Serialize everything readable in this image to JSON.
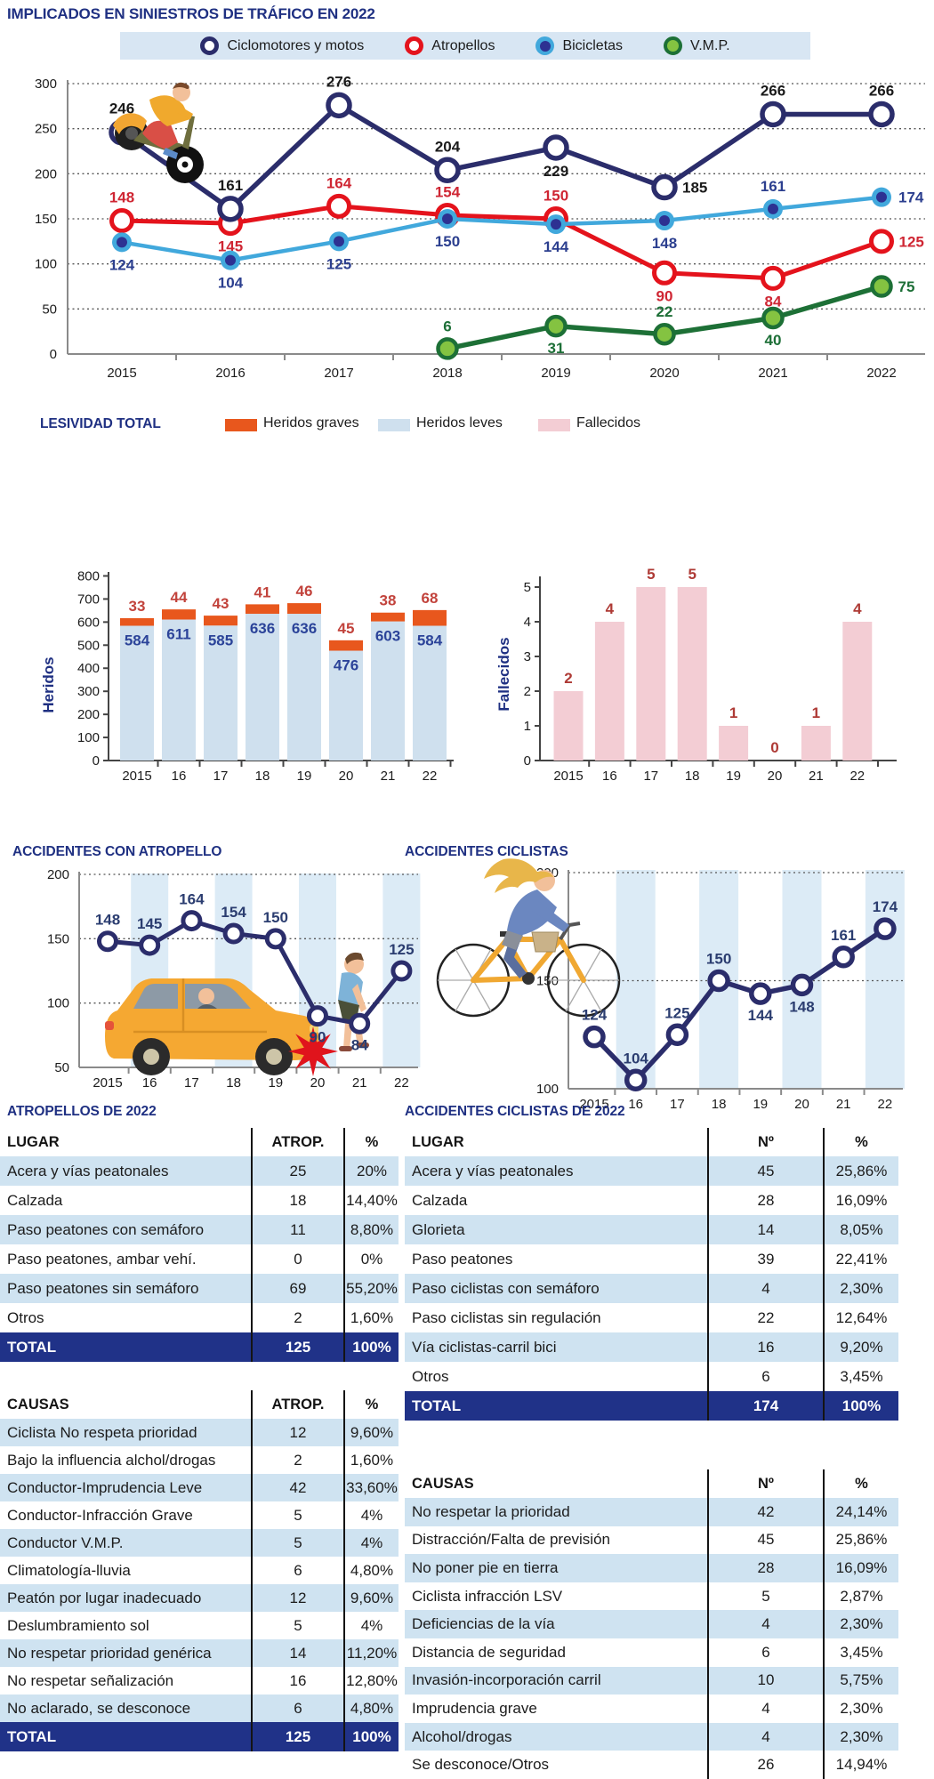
{
  "page_title": "IMPLICADOS EN SINIESTROS DE TRÁFICO EN 2022",
  "colors": {
    "accent_navy": "#1f3082",
    "line_navy": "#2b2d6b",
    "line_red": "#e4131c",
    "line_lightblue": "#41a8dc",
    "line_green": "#1d7036",
    "green_fill": "#84c341",
    "orange": "#e8571d",
    "light_blue_fill": "#cfe0ee",
    "pink": "#f3cdd4",
    "row_stripe": "#cfe3f1",
    "table_total_bg": "#203288",
    "plot_band": "#dcebf6"
  },
  "top_legend": [
    {
      "label": "Ciclomotores y motos"
    },
    {
      "label": "Atropellos"
    },
    {
      "label": "Bicicletas"
    },
    {
      "label": "V.M.P."
    }
  ],
  "lesividad_title": "LESIVIDAD TOTAL",
  "lesividad_legend": [
    {
      "label": "Heridos graves",
      "color": "#e8571d"
    },
    {
      "label": "Heridos leves",
      "color": "#cfe0ee"
    },
    {
      "label": "Fallecidos",
      "color": "#f3cdd4"
    }
  ],
  "chart_data": [
    {
      "id": "implicados",
      "type": "line",
      "title": "IMPLICADOS EN SINIESTROS DE TRÁFICO EN 2022",
      "x": [
        "2015",
        "2016",
        "2017",
        "2018",
        "2019",
        "2020",
        "2021",
        "2022"
      ],
      "ylim": [
        0,
        300
      ],
      "yticks": [
        0,
        50,
        100,
        150,
        200,
        250,
        300
      ],
      "grid": "dotted-horizontal",
      "legend_position": "top",
      "series": [
        {
          "name": "Ciclomotores y motos",
          "color": "#2b2d6b",
          "values": [
            246,
            161,
            276,
            204,
            229,
            185,
            266,
            266
          ]
        },
        {
          "name": "Atropellos",
          "color": "#e4131c",
          "values": [
            148,
            145,
            164,
            154,
            150,
            90,
            84,
            125
          ]
        },
        {
          "name": "Bicicletas",
          "color": "#41a8dc",
          "values": [
            124,
            104,
            125,
            150,
            144,
            148,
            161,
            174
          ]
        },
        {
          "name": "V.M.P.",
          "color": "#1d7036",
          "values": [
            null,
            null,
            null,
            6,
            31,
            22,
            40,
            75
          ]
        }
      ]
    },
    {
      "id": "heridos",
      "type": "stacked-bar",
      "title": "LESIVIDAD TOTAL",
      "ylabel": "Heridos",
      "categories": [
        "2015",
        "16",
        "17",
        "18",
        "19",
        "20",
        "21",
        "22"
      ],
      "ylim": [
        0,
        800
      ],
      "yticks": [
        0,
        100,
        200,
        300,
        400,
        500,
        600,
        700,
        800
      ],
      "series": [
        {
          "name": "Heridos leves",
          "color": "#cfe0ee",
          "values": [
            584,
            611,
            585,
            636,
            636,
            476,
            603,
            584
          ]
        },
        {
          "name": "Heridos graves",
          "color": "#e8571d",
          "values": [
            33,
            44,
            43,
            41,
            46,
            45,
            38,
            68
          ]
        }
      ]
    },
    {
      "id": "fallecidos",
      "type": "bar",
      "ylabel": "Fallecidos",
      "categories": [
        "2015",
        "16",
        "17",
        "18",
        "19",
        "20",
        "21",
        "22"
      ],
      "ylim": [
        0,
        5
      ],
      "yticks": [
        0,
        1,
        2,
        3,
        4,
        5
      ],
      "color": "#f3cdd4",
      "values": [
        2,
        4,
        5,
        5,
        1,
        0,
        1,
        4
      ]
    },
    {
      "id": "atropellos_trend",
      "type": "line",
      "title": "ACCIDENTES CON ATROPELLO",
      "x": [
        "2015",
        "16",
        "17",
        "18",
        "19",
        "20",
        "21",
        "22"
      ],
      "ylim": [
        50,
        200
      ],
      "yticks": [
        50,
        100,
        150,
        200
      ],
      "color": "#2b2d6b",
      "values": [
        148,
        145,
        164,
        154,
        150,
        90,
        84,
        125
      ]
    },
    {
      "id": "ciclistas_trend",
      "type": "line",
      "title": "ACCIDENTES CICLISTAS",
      "x": [
        "2015",
        "16",
        "17",
        "18",
        "19",
        "20",
        "21",
        "22"
      ],
      "ylim": [
        100,
        200
      ],
      "yticks": [
        100,
        150,
        200
      ],
      "color": "#2b2d6b",
      "values": [
        124,
        104,
        125,
        150,
        144,
        148,
        161,
        174
      ]
    }
  ],
  "tables": {
    "atropellos": {
      "title": "ATROPELLOS DE 2022",
      "lugar": {
        "headers": [
          "LUGAR",
          "ATROP.",
          "%"
        ],
        "rows": [
          [
            "Acera y vías peatonales",
            "25",
            "20%"
          ],
          [
            "Calzada",
            "18",
            "14,40%"
          ],
          [
            "Paso peatones con semáforo",
            "11",
            "8,80%"
          ],
          [
            "Paso peatones, ambar vehí.",
            "0",
            "0%"
          ],
          [
            "Paso peatones sin semáforo",
            "69",
            "55,20%"
          ],
          [
            "Otros",
            "2",
            "1,60%"
          ]
        ],
        "total": [
          "TOTAL",
          "125",
          "100%"
        ]
      },
      "causas": {
        "headers": [
          "CAUSAS",
          "ATROP.",
          "%"
        ],
        "rows": [
          [
            "Ciclista No respeta prioridad",
            "12",
            "9,60%"
          ],
          [
            "Bajo la influencia alchol/drogas",
            "2",
            "1,60%"
          ],
          [
            "Conductor-Imprudencia Leve",
            "42",
            "33,60%"
          ],
          [
            "Conductor-Infracción Grave",
            "5",
            "4%"
          ],
          [
            "Conductor V.M.P.",
            "5",
            "4%"
          ],
          [
            "Climatología-lluvia",
            "6",
            "4,80%"
          ],
          [
            "Peatón por lugar inadecuado",
            "12",
            "9,60%"
          ],
          [
            "Deslumbramiento sol",
            "5",
            "4%"
          ],
          [
            "No respetar prioridad genérica",
            "14",
            "11,20%"
          ],
          [
            "No respetar señalización",
            "16",
            "12,80%"
          ],
          [
            "No aclarado, se desconoce",
            "6",
            "4,80%"
          ]
        ],
        "total": [
          "TOTAL",
          "125",
          "100%"
        ]
      }
    },
    "ciclistas": {
      "title": "ACCIDENTES CICLISTAS DE 2022",
      "lugar": {
        "headers": [
          "LUGAR",
          "Nº",
          "%"
        ],
        "rows": [
          [
            "Acera y vías peatonales",
            "45",
            "25,86%"
          ],
          [
            "Calzada",
            "28",
            "16,09%"
          ],
          [
            "Glorieta",
            "14",
            "8,05%"
          ],
          [
            "Paso peatones",
            "39",
            "22,41%"
          ],
          [
            "Paso ciclistas con semáforo",
            "4",
            "2,30%"
          ],
          [
            "Paso ciclistas sin regulación",
            "22",
            "12,64%"
          ],
          [
            "Vía ciclistas-carril bici",
            "16",
            "9,20%"
          ],
          [
            "Otros",
            "6",
            "3,45%"
          ]
        ],
        "total": [
          "TOTAL",
          "174",
          "100%"
        ]
      },
      "causas": {
        "headers": [
          "CAUSAS",
          "Nº",
          "%"
        ],
        "rows": [
          [
            "No respetar la prioridad",
            "42",
            "24,14%"
          ],
          [
            "Distracción/Falta de previsión",
            "45",
            "25,86%"
          ],
          [
            "No poner pie en tierra",
            "28",
            "16,09%"
          ],
          [
            "Ciclista infracción LSV",
            "5",
            "2,87%"
          ],
          [
            "Deficiencias de la vía",
            "4",
            "2,30%"
          ],
          [
            "Distancia de seguridad",
            "6",
            "3,45%"
          ],
          [
            "Invasión-incorporación carril",
            "10",
            "5,75%"
          ],
          [
            "Imprudencia grave",
            "4",
            "2,30%"
          ],
          [
            "Alcohol/drogas",
            "4",
            "2,30%"
          ],
          [
            "Se desconoce/Otros",
            "26",
            "14,94%"
          ]
        ]
      }
    }
  }
}
